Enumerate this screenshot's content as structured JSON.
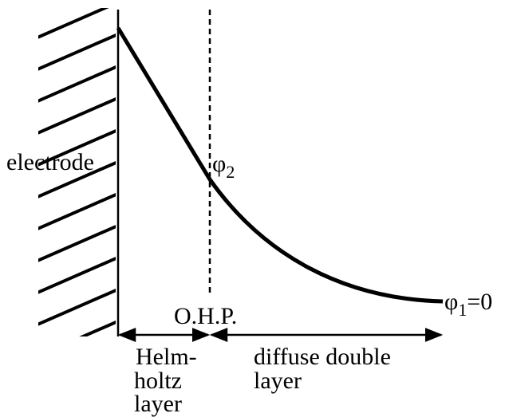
{
  "labels": {
    "electrode": "electrode",
    "phi2": {
      "symbol": "φ",
      "subscript": "2"
    },
    "ohp": "O.H.P.",
    "phi1": {
      "symbol": "φ",
      "subscript": "1",
      "suffix": "=0"
    },
    "helmholtz": [
      "Helm-",
      "holtz",
      "layer"
    ],
    "diffuse": [
      "diffuse double",
      "layer"
    ]
  }
}
